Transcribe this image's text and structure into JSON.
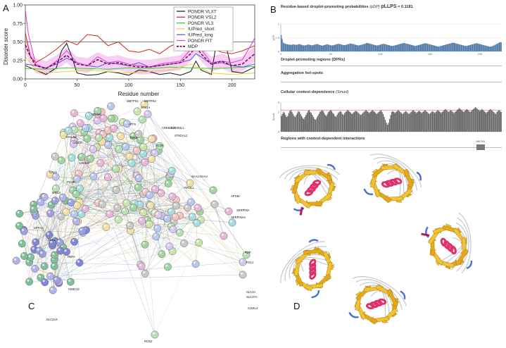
{
  "panel_letters": {
    "a": "A",
    "b": "B",
    "c": "C",
    "d": "D"
  },
  "chart_data": [
    {
      "type": "line",
      "panel": "A",
      "xlabel": "Residue number",
      "ylabel": "Disorder score",
      "xlim": [
        0,
        222
      ],
      "ylim": [
        0,
        1
      ],
      "xticks": [
        "0",
        "50",
        "100",
        "150",
        "200"
      ],
      "yticks": [
        "0.00",
        "0.25",
        "0.50",
        "0.75",
        "1.00"
      ],
      "threshold": 0.5,
      "legend_position": "top-right",
      "series": [
        {
          "name": "PONDR VLXT",
          "color": "#111111",
          "x": [
            0,
            10,
            20,
            30,
            35,
            40,
            45,
            50,
            60,
            70,
            80,
            90,
            100,
            110,
            120,
            130,
            140,
            150,
            160,
            165,
            170,
            180,
            185,
            190,
            195,
            200,
            210,
            222
          ],
          "values": [
            0.18,
            0.12,
            0.06,
            0.15,
            0.38,
            0.48,
            0.3,
            0.08,
            0.05,
            0.06,
            0.1,
            0.08,
            0.05,
            0.12,
            0.1,
            0.06,
            0.08,
            0.05,
            0.1,
            0.24,
            0.12,
            0.06,
            0.5,
            0.72,
            0.4,
            0.1,
            0.08,
            0.16
          ]
        },
        {
          "name": "PONDR VSL2",
          "color": "#d62020",
          "x": [
            0,
            5,
            10,
            20,
            30,
            40,
            50,
            60,
            70,
            80,
            90,
            100,
            110,
            120,
            130,
            140,
            150,
            160,
            165,
            170,
            180,
            190,
            200,
            210,
            222
          ],
          "values": [
            0.62,
            0.3,
            0.22,
            0.3,
            0.4,
            0.52,
            0.46,
            0.6,
            0.58,
            0.45,
            0.5,
            0.38,
            0.36,
            0.4,
            0.34,
            0.44,
            0.5,
            0.6,
            0.88,
            0.72,
            0.42,
            0.36,
            0.34,
            0.38,
            0.45
          ]
        },
        {
          "name": "PONDR VL3",
          "color": "#33cc33",
          "x": [
            0,
            20,
            40,
            60,
            80,
            100,
            120,
            140,
            160,
            180,
            200,
            222
          ],
          "values": [
            0.14,
            0.13,
            0.15,
            0.14,
            0.13,
            0.15,
            0.14,
            0.16,
            0.15,
            0.14,
            0.15,
            0.17
          ]
        },
        {
          "name": "IUPred_short",
          "color": "#e6d33a",
          "x": [
            0,
            10,
            20,
            40,
            60,
            80,
            100,
            120,
            140,
            160,
            180,
            200,
            222
          ],
          "values": [
            0.3,
            0.12,
            0.08,
            0.1,
            0.12,
            0.1,
            0.08,
            0.1,
            0.12,
            0.2,
            0.08,
            0.06,
            0.08
          ]
        },
        {
          "name": "IUPred_long",
          "color": "#5555dd",
          "x": [
            0,
            10,
            20,
            30,
            40,
            50,
            60,
            70,
            80,
            90,
            100,
            110,
            120,
            130,
            140,
            150,
            160,
            165,
            170,
            180,
            190,
            200,
            210,
            222
          ],
          "values": [
            0.2,
            0.18,
            0.15,
            0.2,
            0.28,
            0.22,
            0.18,
            0.16,
            0.22,
            0.2,
            0.18,
            0.22,
            0.16,
            0.18,
            0.2,
            0.22,
            0.26,
            0.34,
            0.3,
            0.2,
            0.22,
            0.18,
            0.16,
            0.2
          ]
        },
        {
          "name": "PONDR FIT",
          "color": "#e23bd8",
          "x": [
            0,
            3,
            10,
            20,
            30,
            40,
            50,
            60,
            70,
            80,
            90,
            100,
            110,
            120,
            130,
            140,
            150,
            160,
            165,
            170,
            180,
            190,
            200,
            210,
            218,
            222
          ],
          "values": [
            0.92,
            0.6,
            0.2,
            0.14,
            0.24,
            0.38,
            0.22,
            0.18,
            0.3,
            0.22,
            0.24,
            0.2,
            0.18,
            0.16,
            0.2,
            0.22,
            0.24,
            0.4,
            0.48,
            0.4,
            0.22,
            0.24,
            0.22,
            0.26,
            0.45,
            0.55
          ]
        },
        {
          "name": "MDP",
          "color": "#7a1060",
          "dashed": true,
          "x": [
            0,
            5,
            10,
            20,
            30,
            40,
            50,
            60,
            70,
            80,
            90,
            100,
            110,
            120,
            130,
            140,
            150,
            160,
            165,
            170,
            180,
            190,
            200,
            210,
            222
          ],
          "values": [
            0.46,
            0.3,
            0.18,
            0.14,
            0.22,
            0.32,
            0.2,
            0.18,
            0.26,
            0.2,
            0.22,
            0.18,
            0.16,
            0.16,
            0.18,
            0.2,
            0.22,
            0.34,
            0.44,
            0.34,
            0.2,
            0.24,
            0.18,
            0.2,
            0.34
          ]
        }
      ]
    },
    {
      "type": "bar",
      "panel": "B",
      "title": "Residue-based droplet-promoting probabilities",
      "title_symbol": "(pDP)",
      "score_label": "pLLPS",
      "score_value": "= 0.1181",
      "ylabel": "pDP",
      "xlim": [
        0,
        222
      ],
      "ylim": [
        0,
        1
      ],
      "yticks": [
        "0",
        "0.5",
        "1"
      ],
      "xticks": [
        "0",
        "50",
        "100",
        "150",
        "200"
      ],
      "bar_color": "#4b78a8",
      "values": [
        0.6,
        0.45,
        0.32,
        0.3,
        0.28,
        0.27,
        0.26,
        0.25,
        0.25,
        0.24,
        0.24,
        0.25,
        0.26,
        0.25,
        0.24,
        0.24,
        0.25,
        0.26,
        0.27,
        0.25,
        0.24,
        0.23,
        0.22,
        0.22,
        0.23,
        0.24,
        0.25,
        0.25,
        0.24,
        0.23,
        0.22,
        0.23,
        0.24,
        0.25,
        0.26,
        0.27,
        0.26,
        0.24,
        0.23,
        0.22,
        0.21,
        0.22,
        0.23,
        0.24,
        0.25,
        0.26,
        0.25,
        0.24,
        0.23,
        0.22,
        0.22,
        0.23,
        0.24,
        0.25,
        0.26,
        0.27,
        0.28,
        0.27,
        0.26,
        0.25,
        0.24,
        0.23,
        0.23,
        0.24,
        0.25,
        0.26,
        0.27,
        0.28,
        0.29,
        0.28,
        0.27,
        0.26,
        0.25,
        0.24,
        0.23,
        0.22,
        0.22,
        0.23,
        0.24,
        0.25,
        0.26,
        0.27,
        0.28,
        0.3,
        0.31,
        0.3,
        0.29,
        0.28,
        0.27,
        0.26,
        0.25,
        0.24,
        0.23,
        0.22,
        0.22,
        0.23,
        0.24,
        0.25,
        0.26,
        0.27,
        0.28,
        0.27,
        0.26,
        0.25,
        0.24,
        0.23,
        0.22,
        0.21,
        0.2,
        0.2,
        0.21,
        0.22,
        0.23,
        0.24,
        0.25,
        0.26,
        0.27,
        0.28,
        0.29,
        0.3,
        0.31,
        0.3,
        0.29,
        0.28,
        0.27,
        0.26,
        0.25,
        0.24,
        0.23,
        0.22,
        0.21,
        0.2,
        0.21,
        0.22,
        0.23,
        0.24,
        0.25,
        0.26,
        0.27,
        0.28,
        0.29,
        0.3,
        0.29,
        0.28,
        0.27,
        0.26,
        0.25,
        0.24,
        0.23,
        0.22,
        0.21,
        0.2,
        0.19,
        0.18,
        0.18,
        0.19,
        0.2,
        0.21,
        0.22,
        0.23,
        0.24,
        0.25,
        0.26,
        0.27,
        0.28,
        0.29,
        0.3,
        0.31,
        0.32,
        0.31,
        0.3,
        0.29,
        0.28,
        0.27,
        0.26,
        0.25,
        0.24,
        0.23,
        0.22,
        0.21,
        0.2,
        0.2,
        0.21,
        0.22,
        0.23,
        0.24,
        0.25,
        0.26,
        0.27,
        0.28,
        0.29,
        0.3,
        0.29,
        0.28,
        0.27,
        0.26,
        0.25,
        0.24,
        0.23,
        0.22,
        0.21,
        0.2,
        0.19,
        0.18,
        0.17,
        0.18,
        0.19,
        0.2,
        0.22,
        0.24,
        0.26,
        0.28,
        0.3,
        0.32,
        0.34,
        0.33
      ]
    },
    {
      "type": "bar",
      "panel": "B",
      "title": "Cellular context-dependence",
      "title_symbol": "(Smod)",
      "ylabel": "Smod",
      "ylim": [
        0,
        3
      ],
      "yticks": [
        "0",
        "2",
        "3"
      ],
      "threshold": 2.2,
      "bar_color": "#666666",
      "values": [
        1.6,
        1.8,
        2.0,
        1.9,
        1.7,
        1.5,
        1.6,
        1.9,
        2.1,
        2.2,
        2.0,
        1.8,
        1.6,
        1.5,
        1.7,
        1.9,
        2.1,
        2.0,
        1.8,
        1.6,
        1.4,
        1.3,
        1.5,
        1.7,
        1.9,
        2.1,
        2.2,
        2.0,
        1.9,
        1.7,
        1.5,
        1.3,
        1.2,
        1.4,
        1.6,
        1.8,
        2.0,
        2.1,
        2.2,
        2.1,
        1.9,
        1.7,
        1.6,
        1.8,
        2.0,
        2.1,
        2.2,
        2.1,
        1.9,
        1.8,
        1.6,
        1.5,
        1.7,
        1.9,
        2.0,
        2.1,
        2.0,
        1.8,
        1.7,
        1.9,
        2.0,
        2.1,
        2.2,
        2.1,
        2.0,
        1.9,
        1.8,
        1.9,
        2.0,
        2.1,
        2.1,
        2.0,
        1.9,
        1.8,
        1.7,
        1.8,
        1.9,
        2.0,
        2.1,
        2.2,
        2.1,
        2.0,
        1.9,
        2.0,
        2.1,
        2.2,
        2.1,
        2.0,
        1.9,
        1.8,
        1.9,
        2.0,
        2.1,
        2.2,
        2.0,
        1.8,
        1.5,
        1.2,
        0.9,
        0.7,
        0.9,
        1.3,
        1.7,
        2.0,
        2.1,
        2.0,
        1.9,
        2.0,
        2.1,
        2.2,
        2.1,
        2.0,
        1.9,
        1.8,
        1.9,
        2.0,
        2.1,
        2.0,
        1.9,
        1.8,
        1.9,
        2.0,
        2.1,
        2.2,
        2.1,
        2.0,
        1.9,
        2.0,
        2.1,
        2.1,
        2.0,
        1.9,
        2.0,
        2.1,
        2.2,
        2.1,
        2.0,
        1.9,
        1.8,
        1.9,
        2.0,
        2.1,
        2.0,
        1.9,
        2.0,
        2.1,
        2.2,
        2.1,
        2.0,
        1.9,
        2.0,
        2.1,
        2.2,
        2.3,
        2.2,
        2.1,
        2.0,
        2.1,
        2.2,
        2.1,
        2.0,
        1.9,
        2.0,
        2.1,
        2.2,
        2.3,
        2.4,
        2.3,
        2.2,
        2.1,
        2.0,
        2.1,
        2.2,
        2.3,
        2.2,
        2.1,
        2.0,
        2.1,
        2.2,
        2.3,
        2.4,
        2.5,
        2.4,
        2.3,
        2.2,
        2.1,
        2.2,
        2.3,
        2.2,
        2.1,
        2.0,
        1.9,
        2.0,
        2.1,
        2.2,
        2.3,
        2.2,
        2.1,
        2.0,
        1.9,
        1.8,
        2.0,
        2.1,
        2.2,
        2.1,
        2.0
      ]
    }
  ],
  "panel_b": {
    "dpr_title": "Droplet-promoting regions (DPRs)",
    "hotspot_title": "Aggregation hot-spots",
    "regions_title": "Regions with context-dependent interactions",
    "region_badge": "195-203"
  },
  "network": {
    "nodes": [
      "MBTPS2",
      "MBTPS1",
      "STX1A",
      "ODAM",
      "ATF6",
      "CREB3L3",
      "CREB3L1",
      "ST6GAL2",
      "TMX4",
      "SCIN",
      "TAGLN2",
      "CALCR",
      "CALU",
      "PCAR",
      "MNDA",
      "CHI3L1",
      "SAA2-SAA4",
      "APOL1",
      "APOM",
      "SERPINA4",
      "SERPINA",
      "RZP",
      "FGL1",
      "SLC2A",
      "SLC37A",
      "CHI4L2",
      "SPTA1",
      "H2AX",
      "RCN2",
      "RBFA",
      "SLC2A3",
      "H2BC12"
    ]
  }
}
